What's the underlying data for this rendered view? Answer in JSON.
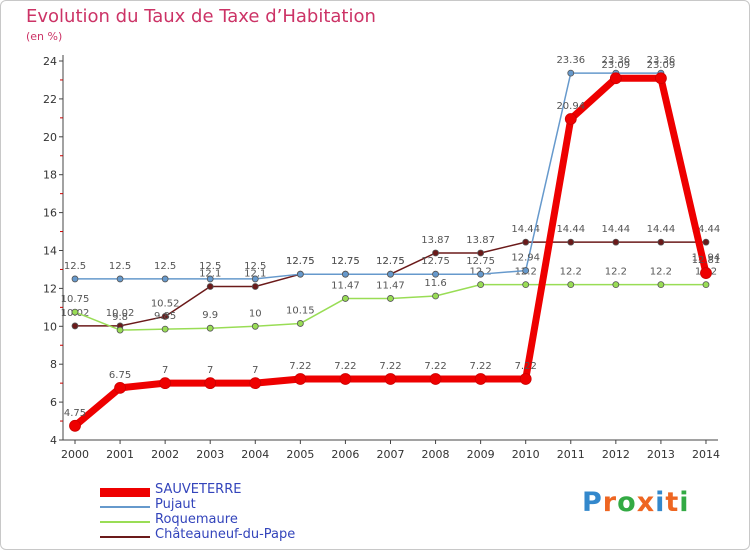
{
  "title": "Evolution du Taux de Taxe d’Habitation",
  "unit_label": "(en %)",
  "logo": {
    "text": "Proxiti",
    "letter_colors": [
      "#3388cc",
      "#ee6622",
      "#33aa44",
      "#ee6622",
      "#3388cc",
      "#ee6622",
      "#33aa44"
    ]
  },
  "chart_data": {
    "type": "line",
    "x": [
      "2000",
      "2001",
      "2002",
      "2003",
      "2004",
      "2005",
      "2006",
      "2007",
      "2008",
      "2009",
      "2010",
      "2011",
      "2012",
      "2013",
      "2014"
    ],
    "ylim": [
      4,
      24
    ],
    "yticks": [
      4,
      6,
      8,
      10,
      12,
      14,
      16,
      18,
      20,
      22,
      24
    ],
    "ytick_labels": [
      "4",
      "6",
      "8",
      "10",
      "12",
      "14",
      "16",
      "18",
      "20",
      "22",
      "24"
    ],
    "grid": false,
    "legend_position": "bottom-left",
    "series": [
      {
        "name": "Châteauneuf-du-Pape",
        "color": "#6b1a1a",
        "width": 1.5,
        "values": [
          10.02,
          10.02,
          10.52,
          12.1,
          12.1,
          12.75,
          12.75,
          12.75,
          13.87,
          13.87,
          14.44,
          14.44,
          14.44,
          14.44,
          14.44
        ],
        "labels": [
          "10.02",
          "10.02",
          "10.52",
          "12.1",
          "12.1",
          "12.75",
          "12.75",
          "12.75",
          "13.87",
          "13.87",
          "14.44",
          "14.44",
          "14.44",
          "14.44",
          "14.44"
        ]
      },
      {
        "name": "Roquemaure",
        "color": "#99dd55",
        "width": 1.5,
        "values": [
          10.75,
          9.8,
          9.85,
          9.9,
          10,
          10.15,
          11.47,
          11.47,
          11.6,
          12.2,
          12.2,
          12.2,
          12.2,
          12.2,
          12.2
        ],
        "labels": [
          "10.75",
          "9.8",
          "9.85",
          "9.9",
          "10",
          "10.15",
          "11.47",
          "11.47",
          "11.6",
          "12.2",
          "12.2",
          "12.2",
          "12.2",
          "12.2",
          "12.2"
        ]
      },
      {
        "name": "Pujaut",
        "color": "#6699cc",
        "width": 1.5,
        "values": [
          12.5,
          12.5,
          12.5,
          12.5,
          12.5,
          12.75,
          12.75,
          12.75,
          12.75,
          12.75,
          12.94,
          23.36,
          23.36,
          23.36,
          12.94
        ],
        "labels": [
          "12.5",
          "12.5",
          "12.5",
          "12.5",
          "12.5",
          "12.75",
          "12.75",
          "12.75",
          "12.75",
          "12.75",
          "12.94",
          "23.36",
          "23.36",
          "23.36",
          "12.94"
        ]
      },
      {
        "name": "SAUVETERRE",
        "color": "#ee0000",
        "width": 7,
        "values": [
          4.75,
          6.75,
          7,
          7,
          7,
          7.22,
          7.22,
          7.22,
          7.22,
          7.22,
          7.22,
          20.94,
          23.09,
          23.09,
          12.81
        ],
        "labels": [
          "4.75",
          "6.75",
          "7",
          "7",
          "7",
          "7.22",
          "7.22",
          "7.22",
          "7.22",
          "7.22",
          "7.22",
          "20.94",
          "23.09",
          "23.09",
          "12.81"
        ]
      }
    ],
    "legend_order": [
      "SAUVETERRE",
      "Pujaut",
      "Roquemaure",
      "Châteauneuf-du-Pape"
    ]
  }
}
